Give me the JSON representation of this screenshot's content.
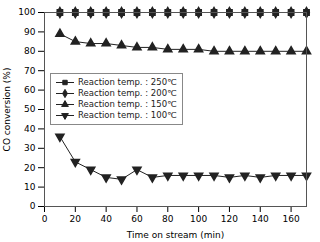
{
  "chart_data": {
    "type": "line",
    "xlabel": "Time on stream (min)",
    "ylabel": "CO conversion (%)",
    "x": [
      10,
      20,
      30,
      40,
      50,
      60,
      70,
      80,
      90,
      100,
      110,
      120,
      130,
      140,
      150,
      160,
      170
    ],
    "series": [
      {
        "name": "Reaction temp. : 250℃",
        "color": "#222222",
        "marker": "square",
        "values": [
          100,
          100,
          100,
          100,
          100,
          100,
          100,
          100,
          100,
          100,
          100,
          100,
          100,
          100,
          100,
          100,
          100
        ]
      },
      {
        "name": "Reaction temp. : 200℃",
        "color": "#222222",
        "marker": "diamond",
        "values": [
          100,
          100,
          100,
          100,
          100,
          100,
          100,
          100,
          100,
          100,
          100,
          100,
          100,
          100,
          100,
          100,
          100
        ]
      },
      {
        "name": "Reaction temp. : 150℃",
        "color": "#222222",
        "marker": "triangle-up",
        "values": [
          89,
          85,
          84,
          84,
          83,
          82,
          82,
          81,
          81,
          81,
          80,
          80,
          80,
          80,
          80,
          80,
          80
        ]
      },
      {
        "name": "Reaction temp. : 100℃",
        "color": "#222222",
        "marker": "triangle-down",
        "values": [
          36,
          23,
          19,
          15,
          14,
          19,
          15,
          16,
          16,
          16,
          16,
          15,
          16,
          15,
          16,
          16,
          16
        ]
      }
    ],
    "xlim": [
      0,
      170
    ],
    "ylim": [
      0,
      100
    ],
    "xticks": [
      0,
      20,
      40,
      60,
      80,
      100,
      120,
      140,
      160
    ],
    "yticks": [
      0,
      10,
      20,
      30,
      40,
      50,
      60,
      70,
      80,
      90,
      100
    ],
    "grid": false,
    "legend": "center left"
  }
}
